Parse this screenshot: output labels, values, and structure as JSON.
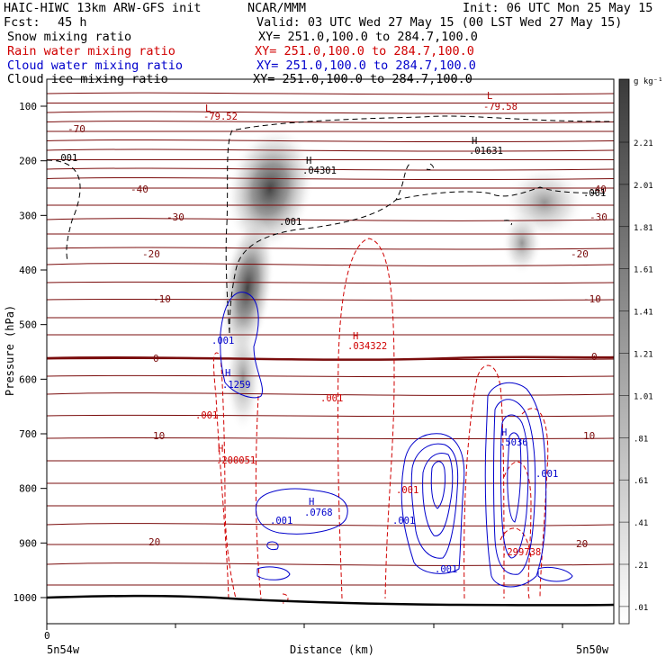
{
  "header": {
    "title": "HAIC-HIWC 13km ARW-GFS init",
    "org": "NCAR/MMM",
    "init": "Init: 06 UTC Mon 25 May 15",
    "fcst_label": "Fcst:",
    "fcst_value": "45 h",
    "valid": "Valid: 03 UTC Wed 27 May 15 (00 LST Wed 27 May 15)",
    "fields": [
      {
        "name": "Snow mixing ratio",
        "xy": "XY= 251.0,100.0 to 284.7,100.0",
        "color": "#000000"
      },
      {
        "name": "Rain water mixing ratio",
        "xy": "XY= 251.0,100.0 to 284.7,100.0",
        "color": "#d00000"
      },
      {
        "name": "Cloud water mixing ratio",
        "xy": "XY= 251.0,100.0 to 284.7,100.0",
        "color": "#0000cc"
      },
      {
        "name": "Cloud ice mixing ratio",
        "xy": "XY= 251.0,100.0 to 284.7,100.0",
        "color": "#000000"
      }
    ]
  },
  "chart_data": {
    "type": "heatmap",
    "ylabel": "Pressure (hPa)",
    "xlabel": "Distance (km)",
    "x_left_label": "5n54w",
    "x_right_label": "5n50w",
    "x_origin_label": "0",
    "y_ticks": [
      100,
      200,
      300,
      400,
      500,
      600,
      700,
      800,
      900,
      1000
    ],
    "ylim": [
      1050,
      80
    ],
    "colorbar": {
      "unit": "g kg⁻¹",
      "labels": [
        "2.21",
        "2.01",
        "1.81",
        "1.61",
        "1.41",
        "1.21",
        "1.01",
        ".81",
        ".61",
        ".41",
        ".21",
        ".01"
      ]
    },
    "temperature_contours": [
      {
        "value": -70,
        "label": "-70"
      },
      {
        "value": -40,
        "label": "-40"
      },
      {
        "value": -30,
        "label": "-30"
      },
      {
        "value": -20,
        "label": "-20"
      },
      {
        "value": -10,
        "label": "-10"
      },
      {
        "value": 0,
        "label": "0"
      },
      {
        "value": 10,
        "label": "10"
      },
      {
        "value": 20,
        "label": "20"
      }
    ],
    "annotations": [
      {
        "text": "L",
        "color": "#b00000"
      },
      {
        "text": "-79.52",
        "color": "#b00000"
      },
      {
        "text": "L",
        "color": "#b00000"
      },
      {
        "text": "-79.58",
        "color": "#b00000"
      },
      {
        "text": "H",
        "color": "#000000"
      },
      {
        "text": ".04301",
        "color": "#000000"
      },
      {
        "text": "H",
        "color": "#000000"
      },
      {
        "text": ".01631",
        "color": "#000000"
      },
      {
        "text": ".001",
        "color": "#000000"
      },
      {
        "text": ".001",
        "color": "#000000"
      },
      {
        "text": ".001",
        "color": "#000000"
      },
      {
        "text": "H",
        "color": "#d00000"
      },
      {
        "text": ".034322",
        "color": "#d00000"
      },
      {
        "text": ".001",
        "color": "#d00000"
      },
      {
        "text": ".001",
        "color": "#d00000"
      },
      {
        "text": "H",
        "color": "#d00000"
      },
      {
        "text": ".200051",
        "color": "#d00000"
      },
      {
        "text": ".299738",
        "color": "#d00000"
      },
      {
        "text": ".001",
        "color": "#d00000"
      },
      {
        "text": ".001",
        "color": "#0000cc"
      },
      {
        "text": "H",
        "color": "#0000cc"
      },
      {
        "text": ".1259",
        "color": "#0000cc"
      },
      {
        "text": "H",
        "color": "#0000cc"
      },
      {
        "text": ".0768",
        "color": "#0000cc"
      },
      {
        "text": ".001",
        "color": "#0000cc"
      },
      {
        "text": ".001",
        "color": "#0000cc"
      },
      {
        "text": ".001",
        "color": "#0000cc"
      },
      {
        "text": "H",
        "color": "#0000cc"
      },
      {
        "text": ".5036",
        "color": "#0000cc"
      },
      {
        "text": ".001",
        "color": "#0000cc"
      }
    ]
  }
}
